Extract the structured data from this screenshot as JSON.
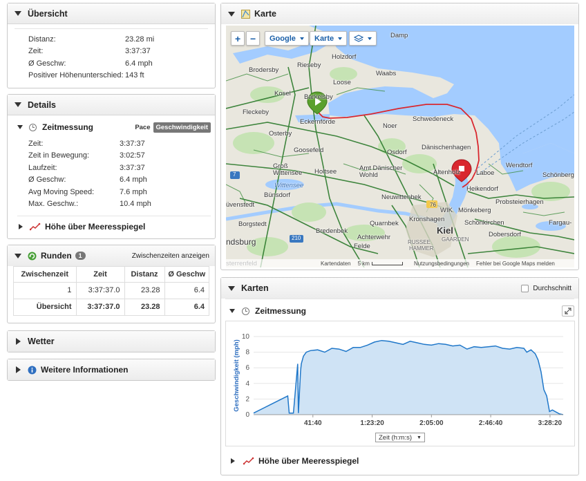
{
  "overview": {
    "title": "Übersicht",
    "rows": [
      {
        "label": "Distanz:",
        "value": "23.28 mi"
      },
      {
        "label": "Zeit:",
        "value": "3:37:37"
      },
      {
        "label": "Ø Geschw:",
        "value": "6.4 mph"
      },
      {
        "label": "Positiver Höhenunterschied:",
        "value": "143 ft"
      }
    ]
  },
  "details": {
    "title": "Details",
    "timing": {
      "title": "Zeitmessung",
      "toggle": [
        "Pace",
        "Geschwindigkeit"
      ],
      "rows": [
        {
          "label": "Zeit:",
          "value": "3:37:37"
        },
        {
          "label": "Zeit in Bewegung:",
          "value": "3:02:57"
        },
        {
          "label": "Laufzeit:",
          "value": "3:37:37"
        },
        {
          "label": "Ø Geschw:",
          "value": "6.4 mph"
        },
        {
          "label": "Avg Moving Speed:",
          "value": "7.6 mph"
        },
        {
          "label": "Max. Geschw.:",
          "value": "10.4 mph"
        }
      ]
    },
    "elevation_label": "Höhe über Meeresspiegel"
  },
  "laps": {
    "title": "Runden",
    "count": "1",
    "split_link": "Zwischenzeiten anzeigen",
    "headers": [
      "Zwischenzeit",
      "Zeit",
      "Distanz",
      "Ø Geschw"
    ],
    "rows": [
      [
        "1",
        "3:37:37.0",
        "23.28",
        "6.4"
      ],
      [
        "Übersicht",
        "3:37:37.0",
        "23.28",
        "6.4"
      ]
    ]
  },
  "weather": {
    "title": "Wetter"
  },
  "more_info": {
    "title": "Weitere Informationen"
  },
  "map": {
    "title": "Karte",
    "zoom_in": "+",
    "zoom_out": "−",
    "provider": "Google",
    "type": "Karte",
    "labels": {
      "damp": "Damp",
      "holzdorf": "Holzdorf",
      "rieseby": "Rieseby",
      "brodersby": "Brodersby",
      "waabs": "Waabs",
      "loose": "Loose",
      "kosel": "Kosel",
      "barkelsby": "Barkelsby",
      "fleckeby": "Fleckeby",
      "eckernfoerde": "Eckernförde",
      "schwedeneck": "Schwedeneck",
      "noer": "Noer",
      "osterby": "Osterby",
      "goosefeld": "Goosefeld",
      "osdorf": "Osdorf",
      "daenischenhagen": "Dänischenhagen",
      "gross_wittensee": "Groß Wittensee",
      "holtsee": "Holtsee",
      "amt_daenischer_wohld": "Amt Dänischer Wohld",
      "altenholz": "Altenholz",
      "laboe": "Laboe",
      "wendtorf": "Wendtorf",
      "schoenberg": "Schönberg",
      "wittensee": "Wittensee",
      "buensdorf": "Bünsdorf",
      "heikendorf": "Heikendorf",
      "neuwittenbek": "Neuwittenbek",
      "probsteierhagen": "Probsteierhagen",
      "moenkeberg": "Mönkeberg",
      "borgstedt": "Borgstedt",
      "quarnbek": "Quarnbek",
      "kronshagen": "Kronshagen",
      "schoenkirchen": "Schönkirchen",
      "fargau": "Fargau-",
      "bredenbek": "Bredenbek",
      "kiel": "Kiel",
      "rendsburg": "ndsburg",
      "achterwehr": "Achterwehr",
      "dobersdorf": "Dobersdorf",
      "felde": "Felde",
      "russee": "RUSSEE",
      "hammer": "HAMMER",
      "gaarden": "GAARDEN",
      "sterrenfeld": "sterrenfeld",
      "wik": "WIK",
      "buevenstedt": "üvenstedt",
      "road_7": "7",
      "road_76": "76",
      "road_210": "210"
    },
    "footer": {
      "data": "Kartendaten",
      "scale": "5 km",
      "terms": "Nutzungsbedingungen",
      "report": "Fehler bei Google Maps melden"
    },
    "route_color": "#d9272e",
    "start_color": "#5aa02c",
    "end_color": "#d9272e"
  },
  "charts": {
    "title": "Karten",
    "average_label": "Durchschnitt",
    "timing_title": "Zeitmessung",
    "elevation_label": "Höhe über Meeresspiegel",
    "axis_select": "Zeit (h:m:s)"
  },
  "chart_data": {
    "type": "area",
    "title": "",
    "xlabel": "Zeit (h:m:s)",
    "ylabel": "Geschwindigkeit (mph)",
    "ylim": [
      0,
      10
    ],
    "yticks": [
      0,
      2,
      4,
      6,
      8,
      10
    ],
    "xlim": [
      "0:00:00",
      "3:37:37"
    ],
    "xticks": [
      "41:40",
      "1:23:20",
      "2:05:00",
      "2:46:40",
      "3:28:20"
    ],
    "series": [
      {
        "color": "#1f77c9",
        "fill": "#cfe3f5",
        "x": [
          "0:00",
          "0:12:00",
          "0:24:00",
          "0:25:00",
          "0:28:00",
          "0:31:00",
          "0:31:30",
          "0:33:00",
          "0:33:30",
          "0:35:00",
          "0:37:00",
          "0:40:00",
          "0:45:00",
          "0:50:00",
          "0:55:00",
          "1:00:00",
          "1:05:00",
          "1:10:00",
          "1:15:00",
          "1:20:00",
          "1:25:00",
          "1:30:00",
          "1:35:00",
          "1:40:00",
          "1:45:00",
          "1:50:00",
          "1:55:00",
          "2:00:00",
          "2:05:00",
          "2:10:00",
          "2:15:00",
          "2:20:00",
          "2:25:00",
          "2:30:00",
          "2:35:00",
          "2:40:00",
          "2:45:00",
          "2:50:00",
          "2:55:00",
          "3:00:00",
          "3:05:00",
          "3:10:00",
          "3:12:00",
          "3:15:00",
          "3:18:00",
          "3:20:00",
          "3:22:00",
          "3:24:00",
          "3:26:00",
          "3:28:00",
          "3:30:00",
          "3:35:00",
          "3:37:37"
        ],
        "y": [
          0.2,
          1.3,
          2.4,
          0.2,
          0.2,
          6.5,
          0.2,
          5.5,
          6.5,
          7.5,
          8.0,
          8.2,
          8.3,
          8.0,
          8.5,
          8.4,
          8.1,
          8.6,
          8.6,
          8.9,
          9.3,
          9.5,
          9.4,
          9.2,
          9.0,
          9.4,
          9.2,
          9.0,
          8.9,
          9.1,
          9.0,
          8.8,
          8.9,
          8.4,
          8.7,
          8.6,
          8.7,
          8.8,
          8.5,
          8.4,
          8.6,
          8.5,
          8.0,
          8.3,
          7.8,
          7.0,
          5.5,
          3.2,
          2.4,
          0.4,
          0.6,
          0.1,
          0.0
        ]
      }
    ]
  }
}
